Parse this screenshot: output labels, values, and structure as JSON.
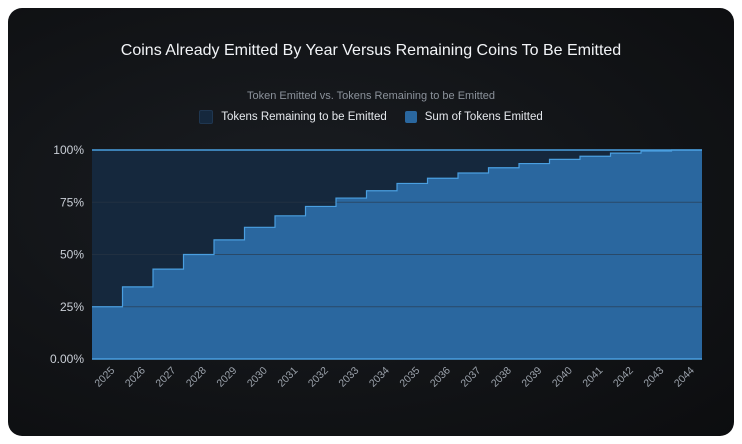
{
  "colors": {
    "remaining": "#15283d",
    "emitted": "#2a679f",
    "line": "#4a9fe0",
    "grid": "#2a3644",
    "tick_text": "#c9ced6"
  },
  "chart_data": {
    "type": "area",
    "title": "Coins Already Emitted By Year Versus Remaining Coins To Be Emitted",
    "legend_title": "Token Emitted vs. Tokens Remaining to be Emitted",
    "legend": "top-center",
    "grid": true,
    "step": true,
    "xlabel": "",
    "ylabel": "",
    "ylim": [
      0,
      100
    ],
    "y_ticks": [
      "0.00%",
      "25%",
      "50%",
      "75%",
      "100%"
    ],
    "y_tick_values": [
      0,
      25,
      50,
      75,
      100
    ],
    "categories": [
      "2025",
      "2026",
      "2027",
      "2028",
      "2029",
      "2030",
      "2031",
      "2032",
      "2033",
      "2034",
      "2035",
      "2036",
      "2037",
      "2038",
      "2039",
      "2040",
      "2041",
      "2042",
      "2043",
      "2044"
    ],
    "series": [
      {
        "name": "Sum of Tokens Emitted",
        "values": [
          25,
          34.5,
          43,
          50,
          57,
          63,
          68.5,
          73,
          77,
          80.5,
          84,
          86.5,
          89,
          91.5,
          93.5,
          95.5,
          97,
          98.5,
          99.5,
          100
        ]
      },
      {
        "name": "Tokens Remaining to be Emitted",
        "values": [
          75,
          65.5,
          57,
          50,
          43,
          37,
          31.5,
          27,
          23,
          19.5,
          16,
          13.5,
          11,
          8.5,
          6.5,
          4.5,
          3,
          1.5,
          0.5,
          0
        ]
      }
    ]
  }
}
